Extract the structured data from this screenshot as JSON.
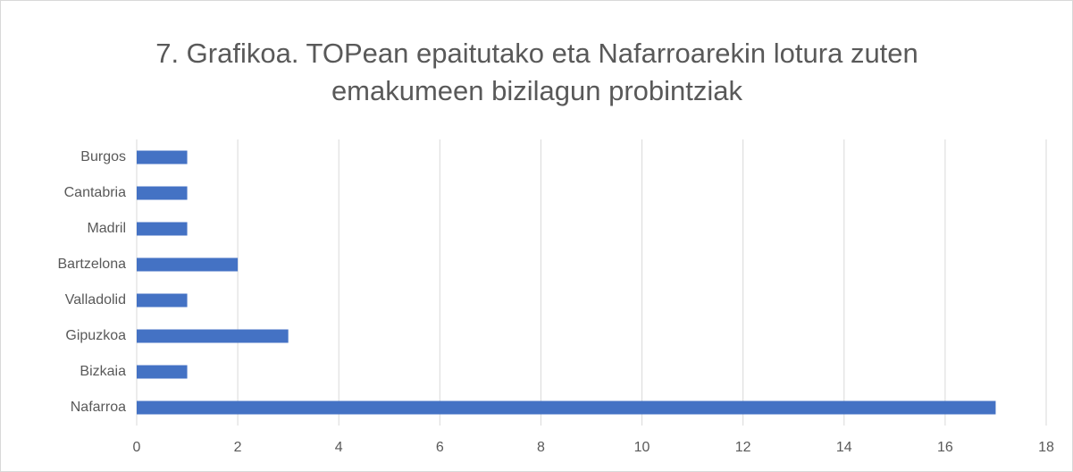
{
  "chart_data": {
    "type": "hbar",
    "title": "7. Grafikoa. TOPean epaitutako eta Nafarroarekin lotura zuten emakumeen bizilagun probintziak",
    "categories": [
      "Burgos",
      "Cantabria",
      "Madril",
      "Bartzelona",
      "Valladolid",
      "Gipuzkoa",
      "Bizkaia",
      "Nafarroa"
    ],
    "values": [
      1,
      1,
      1,
      2,
      1,
      3,
      1,
      17
    ],
    "color": "#4472c4",
    "xlim": [
      0,
      18
    ],
    "xticks": [
      0,
      2,
      4,
      6,
      8,
      10,
      12,
      14,
      16,
      18
    ],
    "grid": true
  }
}
